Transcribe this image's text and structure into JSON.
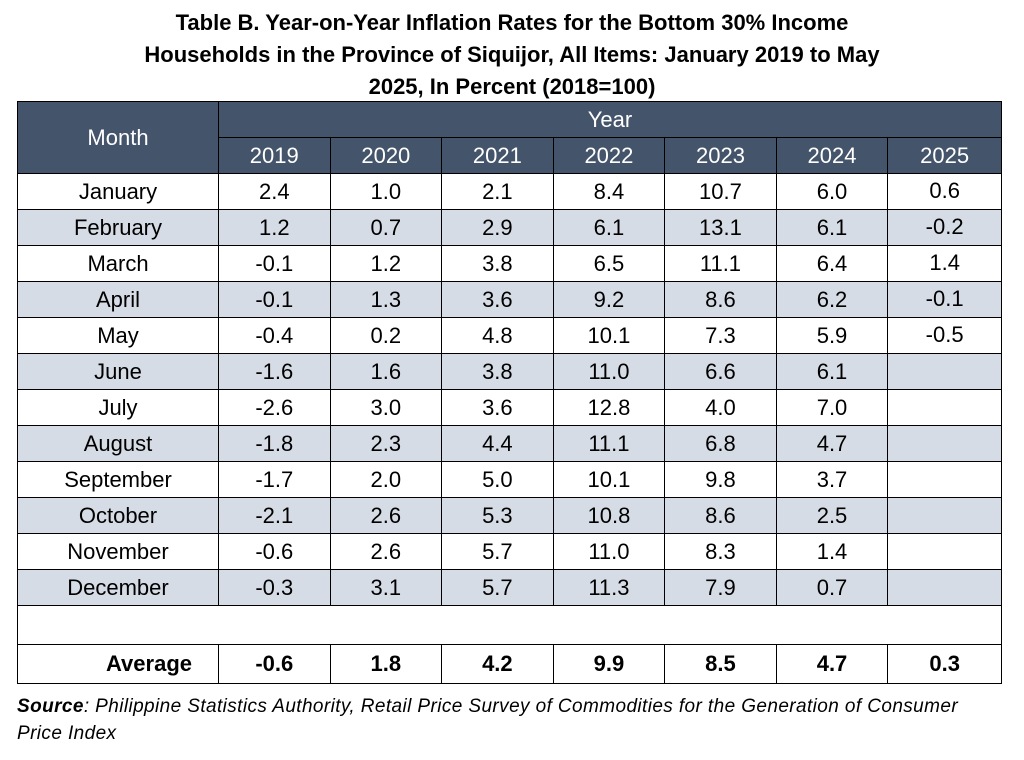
{
  "title": {
    "line1": "Table B. Year-on-Year Inflation Rates for the Bottom 30% Income",
    "line2": "Households in the Province of Siquijor, All Items: January 2019 to May",
    "line3": "2025, In Percent (2018=100)"
  },
  "table": {
    "month_header": "Month",
    "year_header": "Year",
    "years": [
      "2019",
      "2020",
      "2021",
      "2022",
      "2023",
      "2024",
      "2025"
    ],
    "rows": [
      {
        "month": "January",
        "values": [
          "2.4",
          "1.0",
          "2.1",
          "8.4",
          "10.7",
          "6.0",
          "0.6"
        ]
      },
      {
        "month": "February",
        "values": [
          "1.2",
          "0.7",
          "2.9",
          "6.1",
          "13.1",
          "6.1",
          "-0.2"
        ]
      },
      {
        "month": "March",
        "values": [
          "-0.1",
          "1.2",
          "3.8",
          "6.5",
          "11.1",
          "6.4",
          "1.4"
        ]
      },
      {
        "month": "April",
        "values": [
          "-0.1",
          "1.3",
          "3.6",
          "9.2",
          "8.6",
          "6.2",
          "-0.1"
        ]
      },
      {
        "month": "May",
        "values": [
          "-0.4",
          "0.2",
          "4.8",
          "10.1",
          "7.3",
          "5.9",
          "-0.5"
        ]
      },
      {
        "month": "June",
        "values": [
          "-1.6",
          "1.6",
          "3.8",
          "11.0",
          "6.6",
          "6.1",
          ""
        ]
      },
      {
        "month": "July",
        "values": [
          "-2.6",
          "3.0",
          "3.6",
          "12.8",
          "4.0",
          "7.0",
          ""
        ]
      },
      {
        "month": "August",
        "values": [
          "-1.8",
          "2.3",
          "4.4",
          "11.1",
          "6.8",
          "4.7",
          ""
        ]
      },
      {
        "month": "September",
        "values": [
          "-1.7",
          "2.0",
          "5.0",
          "10.1",
          "9.8",
          "3.7",
          ""
        ]
      },
      {
        "month": "October",
        "values": [
          "-2.1",
          "2.6",
          "5.3",
          "10.8",
          "8.6",
          "2.5",
          ""
        ]
      },
      {
        "month": "November",
        "values": [
          "-0.6",
          "2.6",
          "5.7",
          "11.0",
          "8.3",
          "1.4",
          ""
        ]
      },
      {
        "month": "December",
        "values": [
          "-0.3",
          "3.1",
          "5.7",
          "11.3",
          "7.9",
          "0.7",
          ""
        ]
      }
    ],
    "average": {
      "label": "Average",
      "values": [
        "-0.6",
        "1.8",
        "4.2",
        "9.9",
        "8.5",
        "4.7",
        "0.3"
      ]
    }
  },
  "source": {
    "label": "Source",
    "text": ": Philippine Statistics Authority, Retail Price Survey of Commodities for the Generation of Consumer Price Index"
  },
  "colors": {
    "header_bg": "#44546a",
    "header_text": "#ffffff",
    "band_row": "#d6dce5"
  }
}
